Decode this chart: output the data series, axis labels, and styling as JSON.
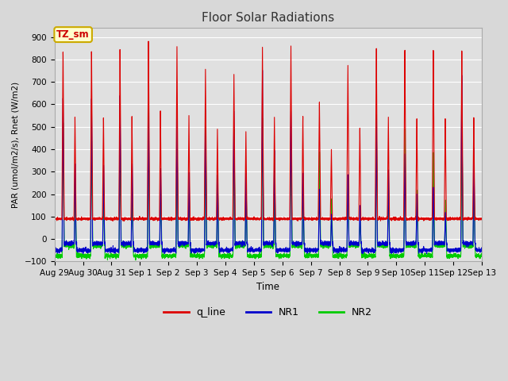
{
  "title": "Floor Solar Radiations",
  "xlabel": "Time",
  "ylabel": "PAR (umol/m2/s), Rnet (W/m2)",
  "ylim": [
    -100,
    940
  ],
  "yticks": [
    -100,
    0,
    100,
    200,
    300,
    400,
    500,
    600,
    700,
    800,
    900
  ],
  "annotation_text": "TZ_sm",
  "annotation_color": "#cc0000",
  "annotation_bg": "#ffffcc",
  "annotation_border": "#ccaa00",
  "line_colors": {
    "q_line": "#dd0000",
    "NR1": "#0000cc",
    "NR2": "#00cc00"
  },
  "line_widths": {
    "q_line": 0.8,
    "NR1": 0.8,
    "NR2": 0.8
  },
  "bg_color": "#d8d8d8",
  "plot_bg_color": "#e0e0e0",
  "grid_color": "#ffffff",
  "n_days": 15,
  "x_tick_labels": [
    "Aug 29",
    "Aug 30",
    "Aug 31",
    "Sep 1",
    "Sep 2",
    "Sep 3",
    "Sep 4",
    "Sep 5",
    "Sep 6",
    "Sep 7",
    "Sep 8",
    "Sep 9",
    "Sep 10",
    "Sep 11",
    "Sep 12",
    "Sep 13"
  ],
  "legend_entries": [
    "q_line",
    "NR1",
    "NR2"
  ],
  "q_peaks": [
    770,
    770,
    770,
    810,
    770,
    670,
    650,
    770,
    780,
    530,
    700,
    780,
    780,
    780,
    780
  ],
  "nr1_peaks": [
    670,
    660,
    670,
    640,
    600,
    590,
    590,
    780,
    590,
    250,
    320,
    600,
    410,
    260,
    780
  ],
  "nr2_peaks": [
    550,
    480,
    480,
    500,
    450,
    550,
    540,
    580,
    460,
    430,
    250,
    520,
    520,
    420,
    550
  ]
}
